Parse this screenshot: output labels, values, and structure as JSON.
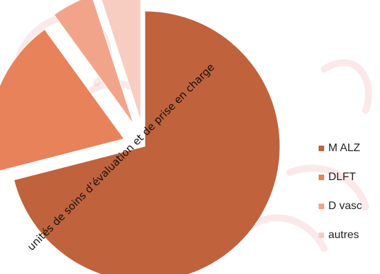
{
  "chart_data": {
    "type": "pie",
    "exploded": true,
    "categories": [
      "M ALZ",
      "DLFT",
      "D vasc",
      "autres"
    ],
    "values": [
      71,
      19,
      5,
      5
    ],
    "colors": [
      "#c0623c",
      "#e8825a",
      "#f2a48a",
      "#f7cdc2"
    ],
    "legend": "right"
  },
  "overlay_caption": "unités de soins d’évaluation et de prise en charge"
}
